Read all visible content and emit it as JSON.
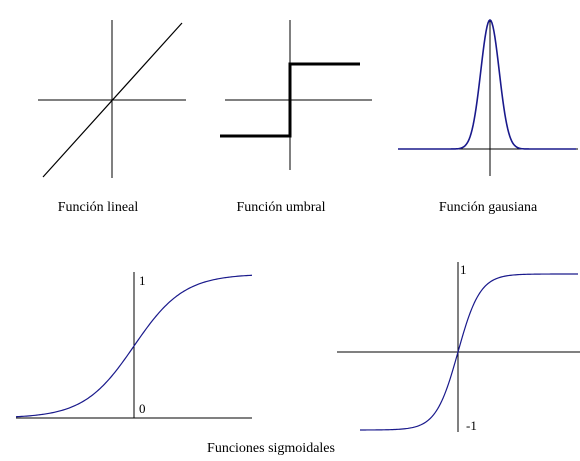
{
  "figure": {
    "panels": [
      {
        "id": "lineal",
        "caption": "Función lineal",
        "ticks": {}
      },
      {
        "id": "umbral",
        "caption": "Función umbral",
        "ticks": {}
      },
      {
        "id": "gausiana",
        "caption": "Función gausiana",
        "ticks": {}
      },
      {
        "id": "sigmoide-logistica",
        "ticks": {
          "top": "1",
          "bottom": "0"
        }
      },
      {
        "id": "sigmoide-tanh",
        "ticks": {
          "top": "1",
          "bottom": "-1"
        }
      }
    ],
    "group_caption": "Funciones sigmoidales",
    "colors": {
      "axis": "#000000",
      "step": "#000000",
      "curve": "#1a1a8c"
    }
  }
}
